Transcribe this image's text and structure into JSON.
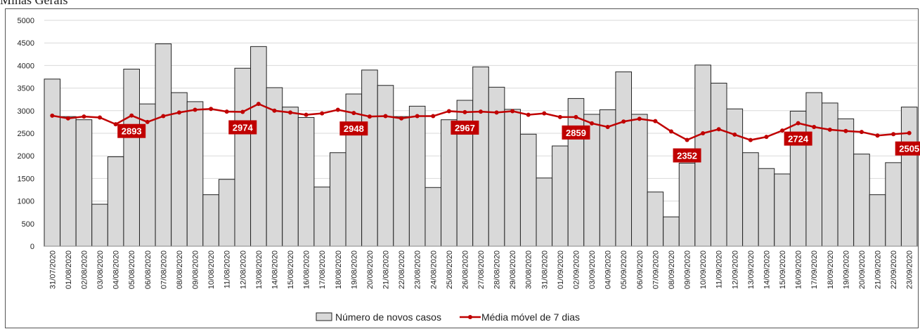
{
  "chart_data": {
    "type": "bar-line",
    "title": "Minas Gerais",
    "categories": [
      "31/07/2020",
      "01/08/2020",
      "02/08/2020",
      "03/08/2020",
      "04/08/2020",
      "05/08/2020",
      "06/08/2020",
      "07/08/2020",
      "08/08/2020",
      "09/08/2020",
      "10/08/2020",
      "11/08/2020",
      "12/08/2020",
      "13/08/2020",
      "14/08/2020",
      "15/08/2020",
      "16/08/2020",
      "17/08/2020",
      "18/08/2020",
      "19/08/2020",
      "20/08/2020",
      "21/08/2020",
      "22/08/2020",
      "23/08/2020",
      "24/08/2020",
      "25/08/2020",
      "26/08/2020",
      "27/08/2020",
      "28/08/2020",
      "29/08/2020",
      "30/08/2020",
      "31/08/2020",
      "01/09/2020",
      "02/09/2020",
      "03/09/2020",
      "04/09/2020",
      "05/09/2020",
      "06/09/2020",
      "07/09/2020",
      "08/09/2020",
      "09/09/2020",
      "10/09/2020",
      "11/09/2020",
      "12/09/2020",
      "13/09/2020",
      "14/09/2020",
      "15/09/2020",
      "16/09/2020",
      "17/09/2020",
      "18/09/2020",
      "19/09/2020",
      "20/09/2020",
      "21/09/2020",
      "22/09/2020",
      "23/09/2020"
    ],
    "series": [
      {
        "name": "Número de novos casos",
        "type": "bar",
        "color": "#d9d9d9",
        "values": [
          3700,
          2870,
          2800,
          930,
          1980,
          3920,
          3150,
          4480,
          3400,
          3200,
          1140,
          1480,
          3940,
          4420,
          3510,
          3080,
          2850,
          1310,
          2070,
          3370,
          3900,
          3560,
          2870,
          3100,
          1300,
          2800,
          3230,
          3970,
          3520,
          3030,
          2480,
          1510,
          2220,
          3270,
          2920,
          3020,
          3860,
          2920,
          1200,
          650,
          1840,
          4010,
          3610,
          3040,
          2070,
          1720,
          1600,
          2990,
          3400,
          3170,
          2820,
          2040,
          1140,
          1850,
          3080
        ]
      },
      {
        "name": "Média móvel de 7 dias",
        "type": "line",
        "color": "#c00000",
        "values": [
          2890,
          2830,
          2870,
          2850,
          2700,
          2893,
          2750,
          2880,
          2960,
          3020,
          3040,
          2980,
          2974,
          3150,
          3000,
          2960,
          2910,
          2940,
          3020,
          2948,
          2870,
          2880,
          2830,
          2880,
          2880,
          2990,
          2967,
          2980,
          2960,
          2990,
          2910,
          2940,
          2860,
          2859,
          2720,
          2640,
          2760,
          2820,
          2770,
          2540,
          2352,
          2500,
          2590,
          2470,
          2350,
          2420,
          2560,
          2724,
          2640,
          2580,
          2550,
          2530,
          2450,
          2480,
          2505
        ],
        "labeled_points": [
          5,
          12,
          19,
          26,
          33,
          40,
          47,
          54
        ]
      }
    ],
    "ylim": [
      0,
      5000
    ],
    "yticks": [
      0,
      500,
      1000,
      1500,
      2000,
      2500,
      3000,
      3500,
      4000,
      4500,
      5000
    ],
    "grid": true,
    "legend": "bottom"
  }
}
